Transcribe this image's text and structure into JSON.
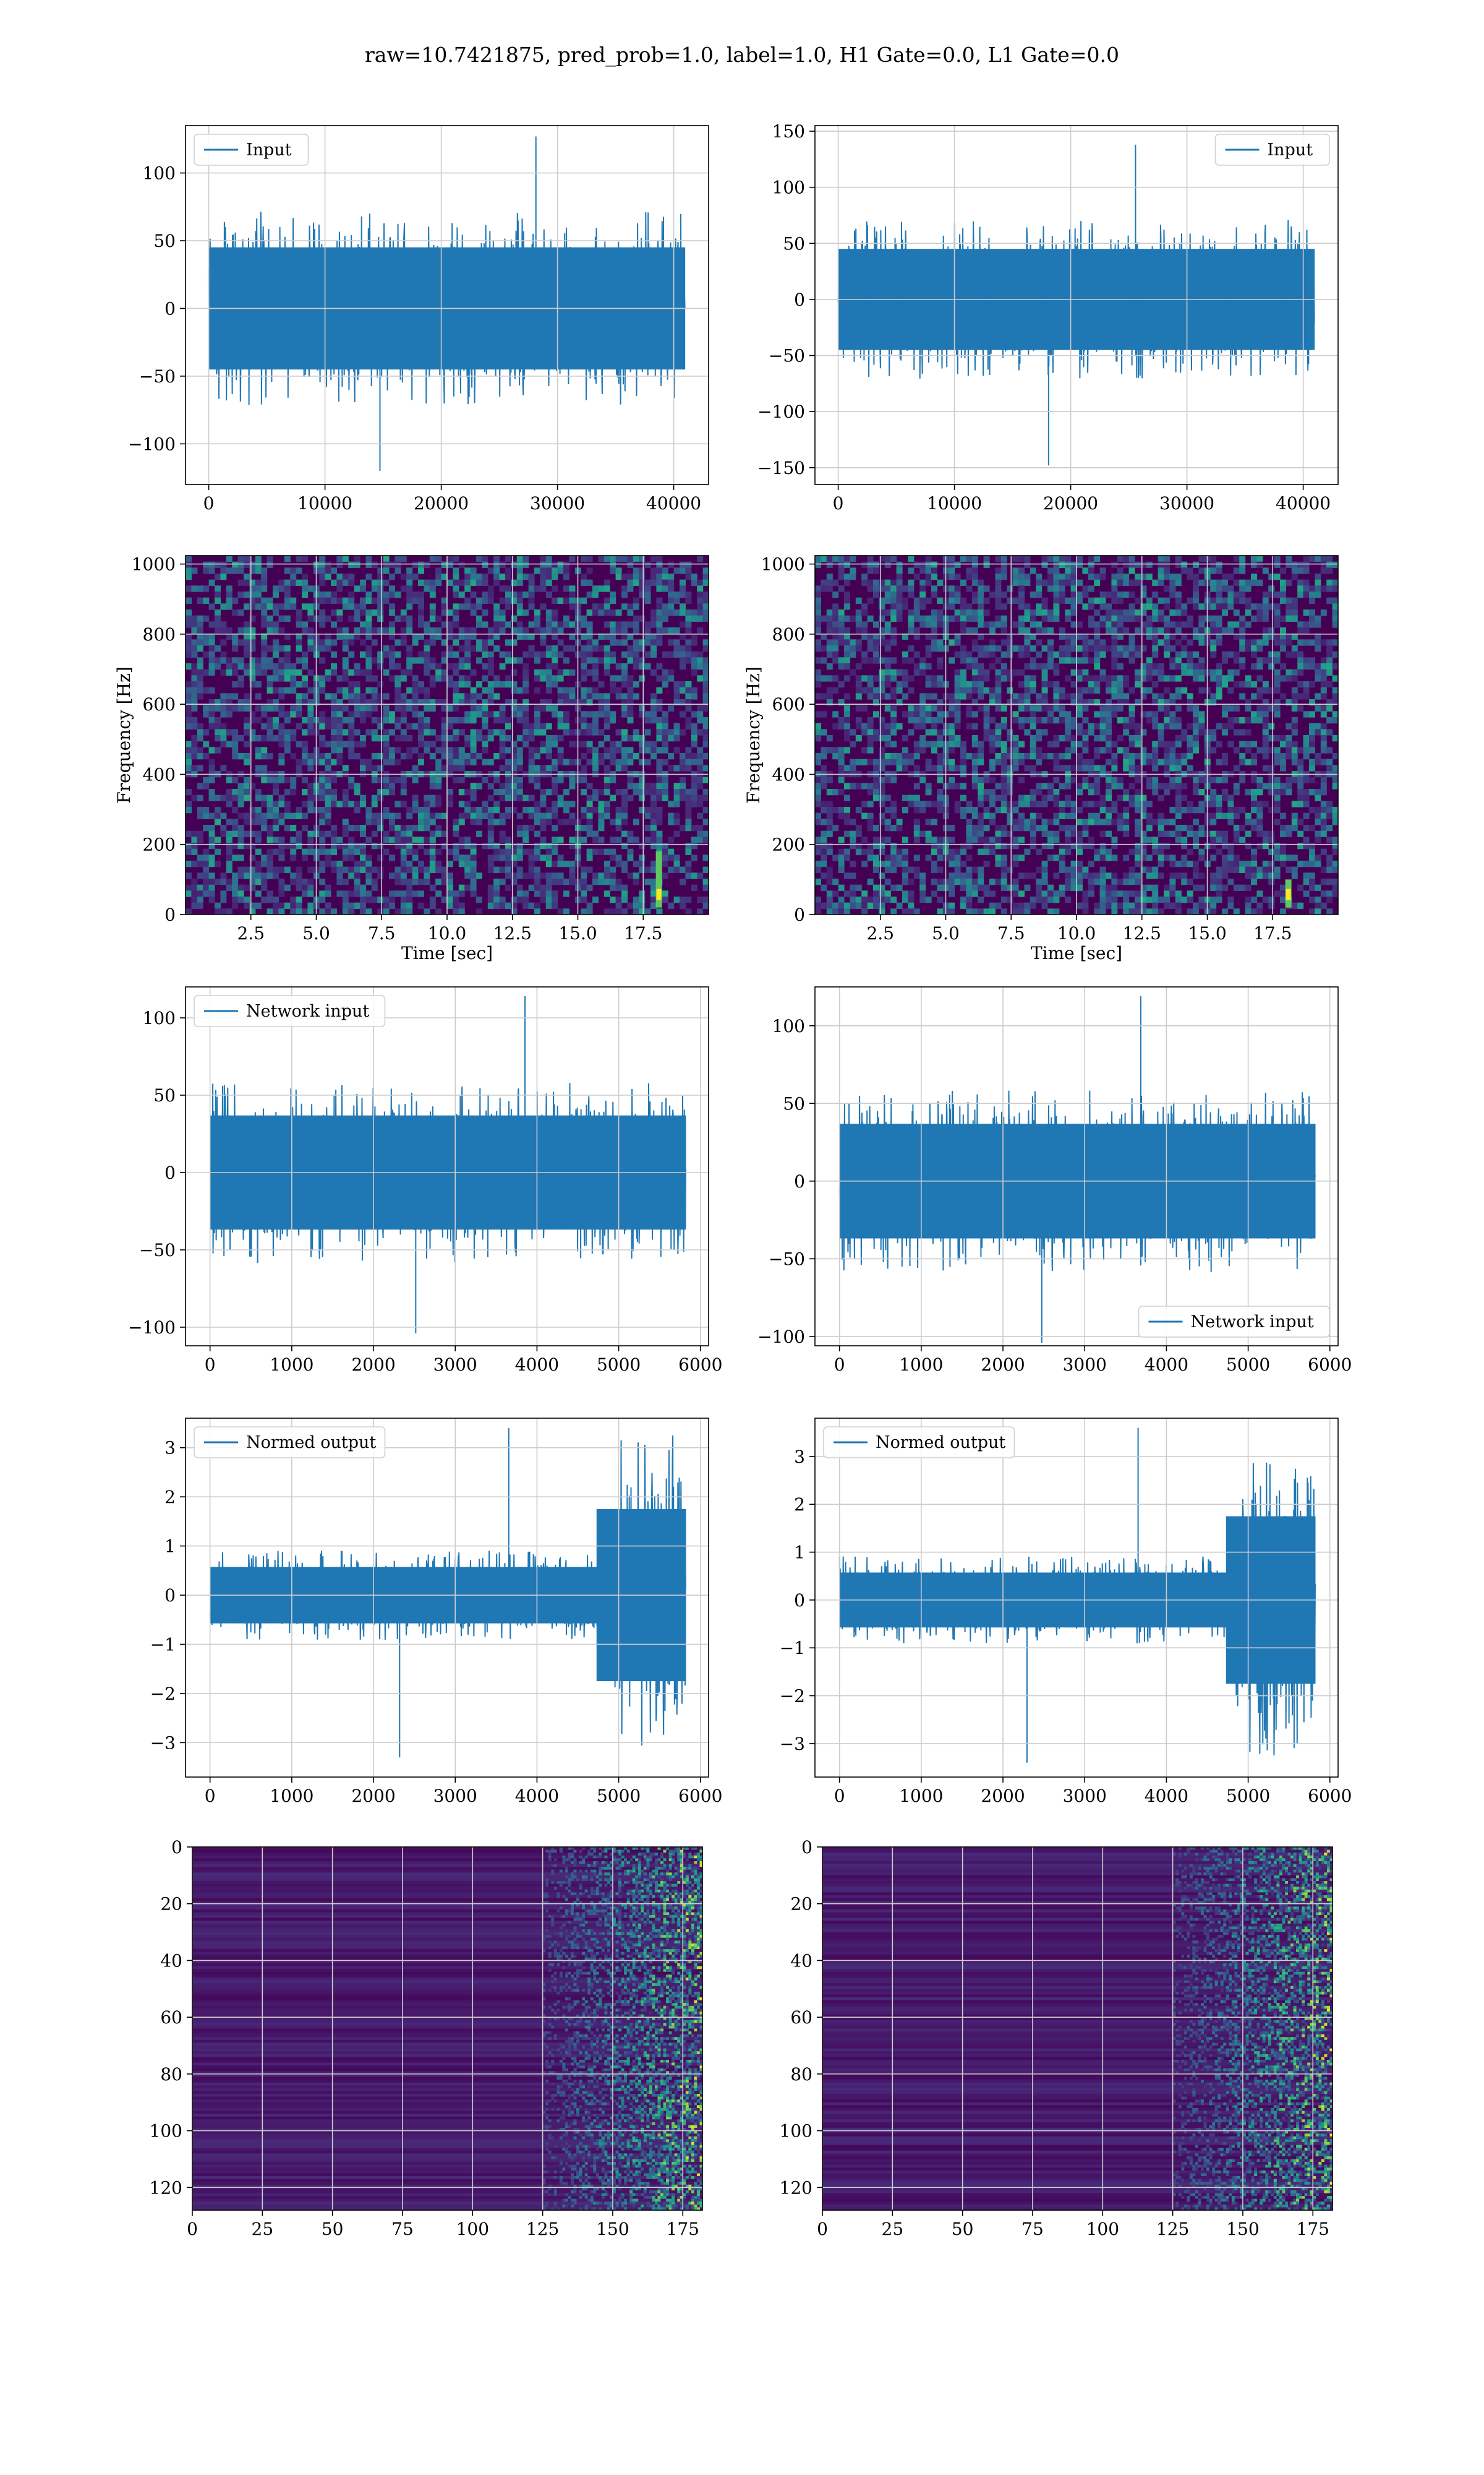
{
  "figure": {
    "title": "raw=10.7421875, pred_prob=1.0, label=1.0, H1 Gate=0.0, L1 Gate=0.0"
  },
  "colors": {
    "line": "#1f77b4",
    "grid": "#cccccc",
    "viridis_low": "#440154",
    "viridis_mid": "#21918c",
    "viridis_high": "#fde725"
  },
  "chart_data": [
    {
      "id": "input_left",
      "type": "line",
      "xlabel": "",
      "ylabel": "",
      "xlim": [
        -2000,
        43000
      ],
      "ylim": [
        -130,
        135
      ],
      "xticks": [
        0,
        10000,
        20000,
        30000,
        40000
      ],
      "yticks": [
        -100,
        -50,
        0,
        50,
        100
      ],
      "legend": {
        "label": "Input",
        "loc": "upper left"
      },
      "series": [
        {
          "name": "Input",
          "n_samples": 40960,
          "x_range": [
            0,
            40960
          ],
          "core_amp": [
            -55,
            55
          ],
          "extremes": [
            -120,
            127
          ]
        }
      ]
    },
    {
      "id": "input_right",
      "type": "line",
      "xlabel": "",
      "ylabel": "",
      "xlim": [
        -2000,
        43000
      ],
      "ylim": [
        -165,
        155
      ],
      "xticks": [
        0,
        10000,
        20000,
        30000,
        40000
      ],
      "yticks": [
        -150,
        -100,
        -50,
        0,
        50,
        100,
        150
      ],
      "legend": {
        "label": "Input",
        "loc": "upper right"
      },
      "series": [
        {
          "name": "Input",
          "n_samples": 40960,
          "x_range": [
            0,
            40960
          ],
          "core_amp": [
            -55,
            55
          ],
          "extremes": [
            -148,
            138
          ]
        }
      ]
    },
    {
      "id": "spec_left",
      "type": "heatmap",
      "xlabel": "Time [sec]",
      "ylabel": "Frequency [Hz]",
      "xlim": [
        0,
        20
      ],
      "ylim": [
        0,
        1024
      ],
      "xticks": [
        2.5,
        5.0,
        7.5,
        10.0,
        12.5,
        15.0,
        17.5
      ],
      "yticks": [
        0,
        200,
        400,
        600,
        800,
        1000
      ],
      "hotspot": {
        "time": 18.1,
        "freq_range": [
          20,
          180
        ]
      }
    },
    {
      "id": "spec_right",
      "type": "heatmap",
      "xlabel": "Time [sec]",
      "ylabel": "Frequency [Hz]",
      "xlim": [
        0,
        20
      ],
      "ylim": [
        0,
        1024
      ],
      "xticks": [
        2.5,
        5.0,
        7.5,
        10.0,
        12.5,
        15.0,
        17.5
      ],
      "yticks": [
        0,
        200,
        400,
        600,
        800,
        1000
      ],
      "hotspot": {
        "time": 18.1,
        "freq_range": [
          20,
          100
        ]
      }
    },
    {
      "id": "net_left",
      "type": "line",
      "xlabel": "",
      "ylabel": "",
      "xlim": [
        -300,
        6100
      ],
      "ylim": [
        -112,
        120
      ],
      "xticks": [
        0,
        1000,
        2000,
        3000,
        4000,
        5000,
        6000
      ],
      "yticks": [
        -100,
        -50,
        0,
        50,
        100
      ],
      "legend": {
        "label": "Network input",
        "loc": "upper left"
      },
      "series": [
        {
          "name": "Network input",
          "n_samples": 5820,
          "x_range": [
            0,
            5820
          ],
          "core_amp": [
            -45,
            45
          ],
          "extremes": [
            -104,
            114
          ]
        }
      ]
    },
    {
      "id": "net_right",
      "type": "line",
      "xlabel": "",
      "ylabel": "",
      "xlim": [
        -300,
        6100
      ],
      "ylim": [
        -106,
        125
      ],
      "xticks": [
        0,
        1000,
        2000,
        3000,
        4000,
        5000,
        6000
      ],
      "yticks": [
        -100,
        -50,
        0,
        50,
        100
      ],
      "legend": {
        "label": "Network input",
        "loc": "lower right"
      },
      "series": [
        {
          "name": "Network input",
          "n_samples": 5820,
          "x_range": [
            0,
            5820
          ],
          "core_amp": [
            -45,
            45
          ],
          "extremes": [
            -104,
            119
          ]
        }
      ]
    },
    {
      "id": "norm_left",
      "type": "line",
      "xlabel": "",
      "ylabel": "",
      "xlim": [
        -300,
        6100
      ],
      "ylim": [
        -3.7,
        3.6
      ],
      "xticks": [
        0,
        1000,
        2000,
        3000,
        4000,
        5000,
        6000
      ],
      "yticks": [
        -3,
        -2,
        -1,
        0,
        1,
        2,
        3
      ],
      "legend": {
        "label": "Normed output",
        "loc": "upper left"
      },
      "series": [
        {
          "name": "Normed output",
          "n_samples": 5820,
          "x_range": [
            0,
            5820
          ],
          "core_amp": [
            -0.7,
            0.7
          ],
          "burst_start": 4700,
          "burst_amp": 2.5,
          "extremes": [
            -3.3,
            3.4
          ]
        }
      ]
    },
    {
      "id": "norm_right",
      "type": "line",
      "xlabel": "",
      "ylabel": "",
      "xlim": [
        -300,
        6100
      ],
      "ylim": [
        -3.7,
        3.8
      ],
      "xticks": [
        0,
        1000,
        2000,
        3000,
        4000,
        5000,
        6000
      ],
      "yticks": [
        -3,
        -2,
        -1,
        0,
        1,
        2,
        3
      ],
      "legend": {
        "label": "Normed output",
        "loc": "upper left"
      },
      "series": [
        {
          "name": "Normed output",
          "n_samples": 5820,
          "x_range": [
            0,
            5820
          ],
          "core_amp": [
            -0.7,
            0.7
          ],
          "burst_start": 4700,
          "burst_amp": 2.5,
          "extremes": [
            -3.4,
            3.6
          ]
        }
      ]
    },
    {
      "id": "feat_left",
      "type": "heatmap",
      "xlabel": "",
      "ylabel": "",
      "xlim": [
        0,
        182
      ],
      "ylim": [
        0,
        128
      ],
      "y_inverted": true,
      "xticks": [
        0,
        25,
        50,
        75,
        100,
        125,
        150,
        175
      ],
      "yticks": [
        0,
        20,
        40,
        60,
        80,
        100,
        120
      ],
      "activity_from": 125
    },
    {
      "id": "feat_right",
      "type": "heatmap",
      "xlabel": "",
      "ylabel": "",
      "xlim": [
        0,
        182
      ],
      "ylim": [
        0,
        128
      ],
      "y_inverted": true,
      "xticks": [
        0,
        25,
        50,
        75,
        100,
        125,
        150,
        175
      ],
      "yticks": [
        0,
        20,
        40,
        60,
        80,
        100,
        120
      ],
      "activity_from": 125
    }
  ]
}
